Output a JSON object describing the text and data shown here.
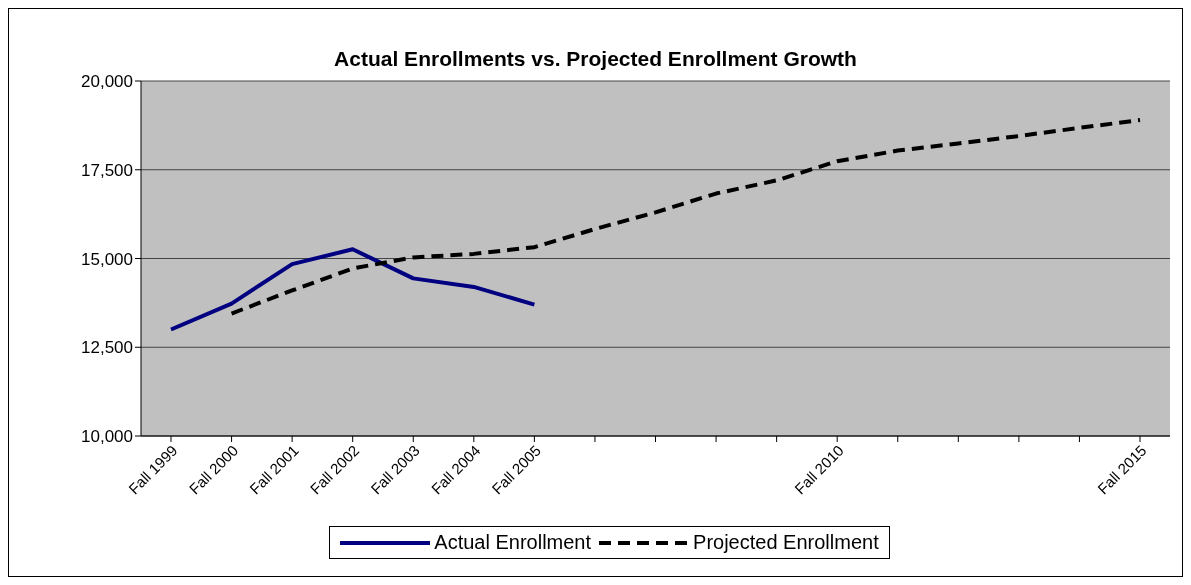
{
  "chart_data": {
    "type": "line",
    "title": "Actual Enrollments vs. Projected Enrollment Growth",
    "categories": [
      "Fall 1999",
      "Fall 2000",
      "Fall 2001",
      "Fall 2002",
      "Fall 2003",
      "Fall 2004",
      "Fall 2005",
      null,
      null,
      null,
      null,
      "Fall 2010",
      null,
      null,
      null,
      null,
      "Fall 2015"
    ],
    "series": [
      {
        "name": "Actual Enrollment",
        "color": "#000080",
        "line_style": "solid",
        "values": [
          13000,
          13730,
          14840,
          15260,
          14440,
          14200,
          13700,
          null,
          null,
          null,
          null,
          null,
          null,
          null,
          null,
          null,
          null
        ]
      },
      {
        "name": "Projected Enrollment",
        "color": "#000000",
        "line_style": "dashed",
        "values": [
          null,
          13450,
          14100,
          14720,
          15030,
          15130,
          15320,
          15830,
          16300,
          16830,
          17200,
          17740,
          18040,
          18240,
          18450,
          18680,
          18900
        ]
      }
    ],
    "ylim": [
      10000,
      20000
    ],
    "yticks": [
      {
        "value": 10000,
        "label": "10,000"
      },
      {
        "value": 12500,
        "label": "12,500"
      },
      {
        "value": 15000,
        "label": "15,000"
      },
      {
        "value": 17500,
        "label": "17,500"
      },
      {
        "value": 20000,
        "label": "20,000"
      }
    ],
    "grid": "y",
    "legend": "bottom",
    "marker": "none"
  }
}
